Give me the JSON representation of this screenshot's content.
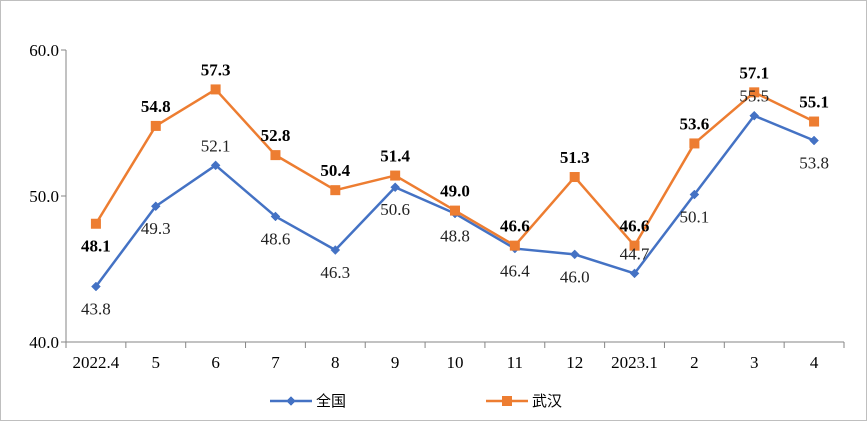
{
  "chart_data": {
    "type": "line",
    "categories": [
      "2022.4",
      "5",
      "6",
      "7",
      "8",
      "9",
      "10",
      "11",
      "12",
      "2023.1",
      "2",
      "3",
      "4"
    ],
    "series": [
      {
        "name": "全国",
        "color": "#4472C4",
        "marker": "diamond",
        "values": [
          43.8,
          49.3,
          52.1,
          48.6,
          46.3,
          50.6,
          48.8,
          46.4,
          46.0,
          44.7,
          50.1,
          55.5,
          53.8
        ],
        "label_pos": [
          "below",
          "below",
          "above",
          "below",
          "below",
          "below",
          "below",
          "below",
          "below",
          "above",
          "below",
          "above",
          "below"
        ]
      },
      {
        "name": "武汉",
        "color": "#ED7D31",
        "marker": "square",
        "values": [
          48.1,
          54.8,
          57.3,
          52.8,
          50.4,
          51.4,
          49.0,
          46.6,
          51.3,
          46.6,
          53.6,
          57.1,
          55.1
        ],
        "label_pos": [
          "below",
          "above",
          "above",
          "above",
          "above",
          "above",
          "above",
          "above",
          "above",
          "above",
          "above",
          "above",
          "above"
        ]
      }
    ],
    "ylim": [
      40.0,
      60.0
    ],
    "yticks": [
      "40.0",
      "50.0",
      "60.0"
    ],
    "legend": "bottom"
  }
}
